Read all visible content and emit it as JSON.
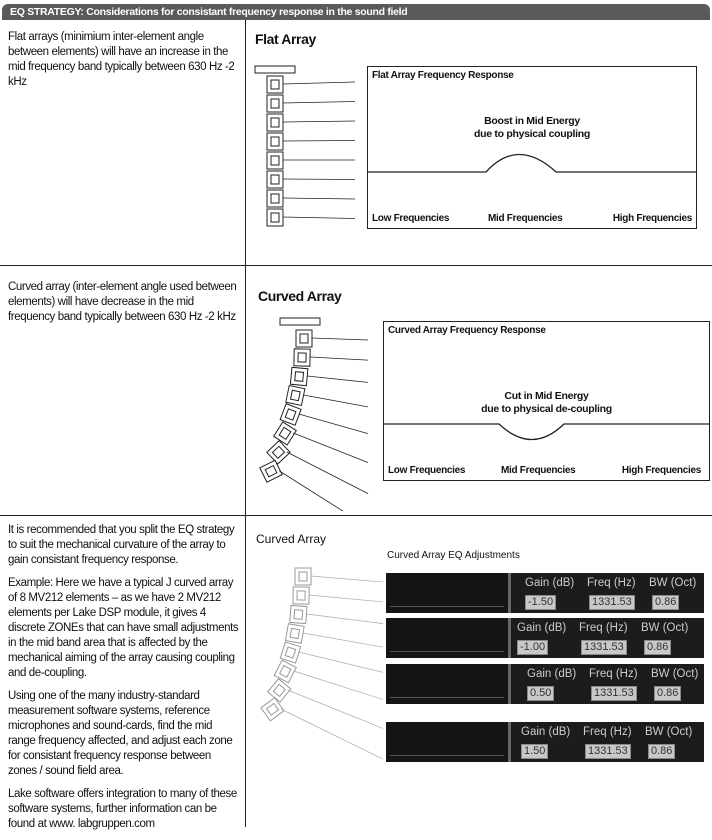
{
  "header": "EQ STRATEGY: Considerations for consistant frequency response in the sound field",
  "flat": {
    "text": "Flat arrays (minimium inter-element angle between elements) will have an increase in the mid frequency band typically between 630 Hz -2 kHz",
    "title": "Flat Array",
    "box_title": "Flat Array Frequency Response",
    "annotation_1": "Boost in Mid Energy",
    "annotation_2": "due to physical coupling",
    "low": "Low Frequencies",
    "mid": "Mid Frequencies",
    "high": "High Frequencies"
  },
  "curved": {
    "text": "Curved array (inter-element angle used between elements) will have decrease in the mid frequency band typically between 630 Hz -2 kHz",
    "title": "Curved Array",
    "box_title": "Curved Array Frequency Response",
    "annotation_1": "Cut in Mid Energy",
    "annotation_2": "due to physical de-coupling",
    "low": "Low Frequencies",
    "mid": "Mid Frequencies",
    "high": "High Frequencies"
  },
  "eq": {
    "paragraphs": [
      "It is recommended that you split the EQ strategy to suit the mechanical curvature of the array to gain consistant frequency response.",
      "Example: Here we have a typical J curved array of 8 MV212 elements – as we have 2 MV212 elements per Lake DSP module, it gives 4 discrete ZONEs that can have small adjustments in the mid band area that is affected by the mechanical aiming of the array causing coupling and de-coupling.",
      "Using one of the many industry-standard measurement software systems, reference microphones and sound-cards, find the mid range frequency affected, and adjust each zone for consistant frequency response between zones / sound field area.",
      "Lake software offers integration to many of these software systems, further information can be found at www. labgruppen.com"
    ],
    "title": "Curved Array",
    "subtitle": "Curved Array EQ Adjustments",
    "labels": {
      "gain": "Gain (dB)",
      "freq": "Freq (Hz)",
      "bw": "BW (Oct)"
    },
    "zones": [
      {
        "gain": "-1.50",
        "freq": "1331.53",
        "bw": "0.86"
      },
      {
        "gain": "-1.00",
        "freq": "1331.53",
        "bw": "0.86"
      },
      {
        "gain": "0.50",
        "freq": "1331.53",
        "bw": "0.86"
      },
      {
        "gain": "1.50",
        "freq": "1331.53",
        "bw": "0.86"
      }
    ]
  }
}
